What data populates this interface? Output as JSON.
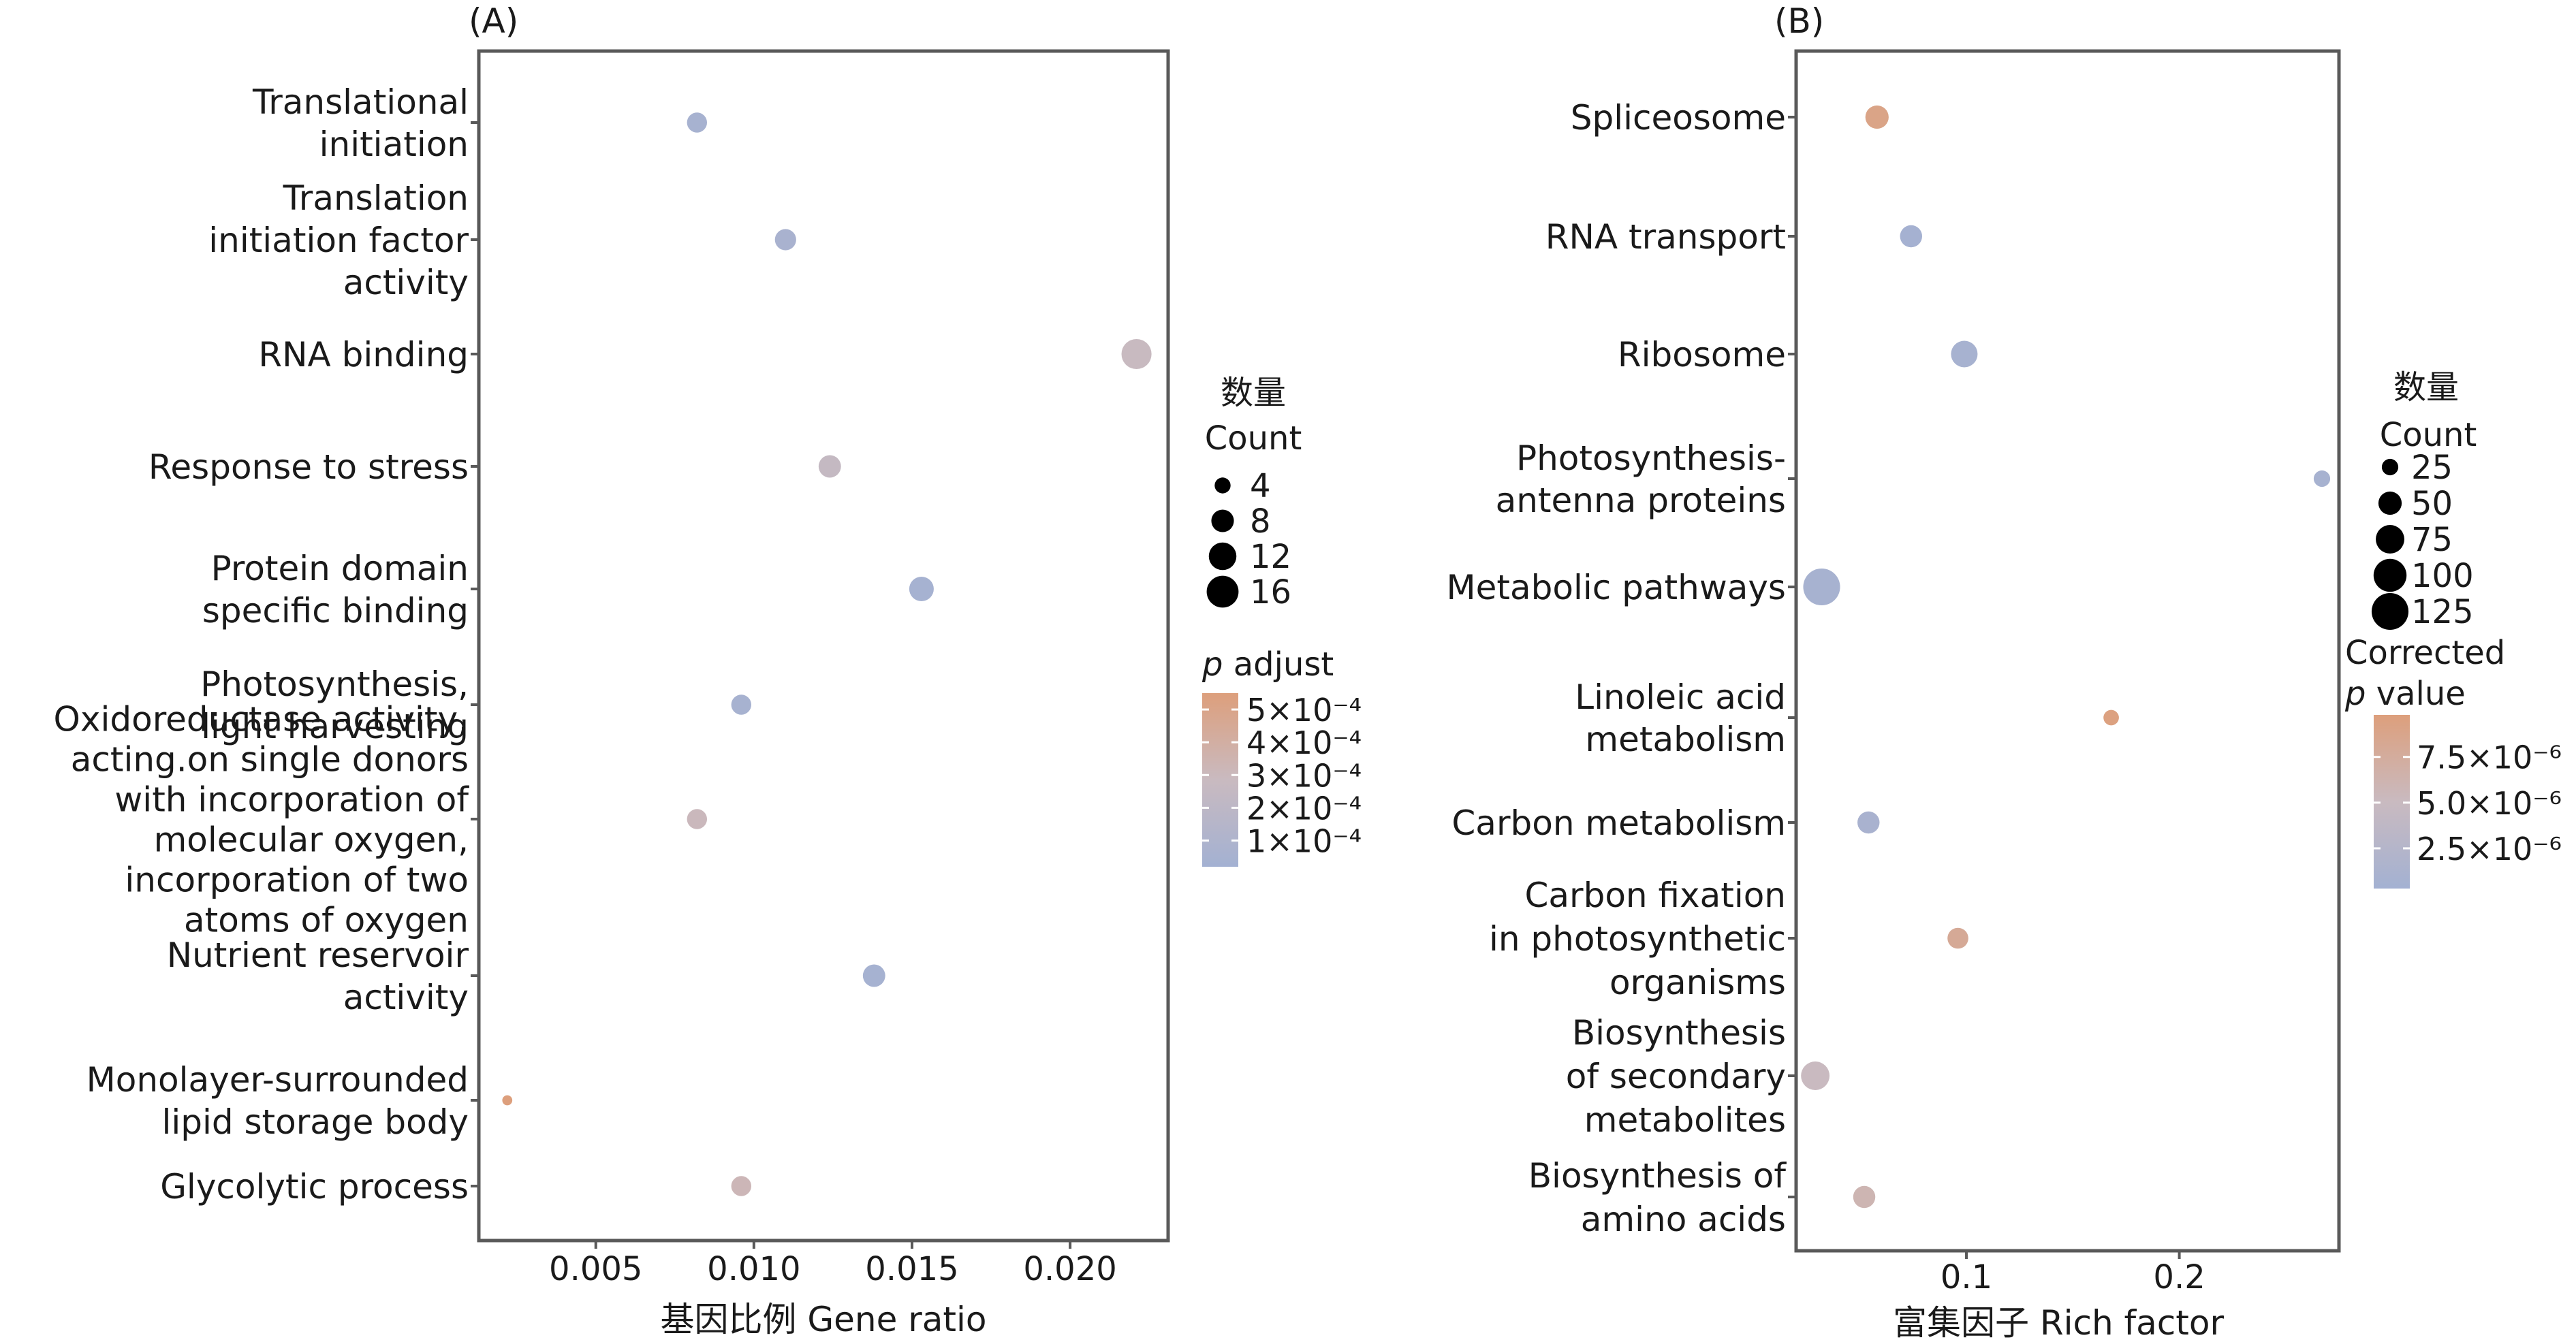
{
  "colors": {
    "low": "#a3b1d2",
    "mid": "#c9bac0",
    "high": "#dd9f7c",
    "axis": "#595959"
  },
  "chart_data": [
    {
      "id": "A",
      "type": "scatter",
      "panel_label": "(A)",
      "xlabel": "基因比例 Gene ratio",
      "xlim": [
        0.0013,
        0.0231
      ],
      "xticks": [
        0.005,
        0.01,
        0.015,
        0.02
      ],
      "xtick_labels": [
        "0.005",
        "0.010",
        "0.015",
        "0.020"
      ],
      "categories": [
        [
          "Translational",
          "initiation"
        ],
        [
          "Translation",
          "initiation factor",
          "activity"
        ],
        [
          "RNA binding"
        ],
        [
          "Response to stress"
        ],
        [
          "Protein domain",
          "specific binding"
        ],
        [
          "Photosynthesis,",
          "light harvesting"
        ],
        [
          "Oxidoreductase activity,",
          "acting.on single donors",
          "with incorporation of",
          "molecular oxygen,",
          "incorporation of two",
          "atoms of oxygen"
        ],
        [
          "Nutrient reservoir",
          "activity"
        ],
        [
          "Monolayer-surrounded",
          "lipid storage body"
        ],
        [
          "Glycolytic process"
        ]
      ],
      "points": [
        {
          "x": 0.0082,
          "count": 8,
          "p": 5e-05
        },
        {
          "x": 0.011,
          "count": 9,
          "p": 6e-05
        },
        {
          "x": 0.0221,
          "count": 18,
          "p": 0.00028
        },
        {
          "x": 0.0124,
          "count": 10,
          "p": 0.00025
        },
        {
          "x": 0.0153,
          "count": 12,
          "p": 4e-05
        },
        {
          "x": 0.0096,
          "count": 8,
          "p": 5e-05
        },
        {
          "x": 0.0082,
          "count": 8,
          "p": 0.0003
        },
        {
          "x": 0.0138,
          "count": 10,
          "p": 4e-05
        },
        {
          "x": 0.0022,
          "count": 2,
          "p": 0.00055
        },
        {
          "x": 0.0096,
          "count": 8,
          "p": 0.00032
        }
      ],
      "size_legend": {
        "title_cn": "数量",
        "title_en": "Count",
        "values": [
          4,
          8,
          12,
          16
        ],
        "labels": [
          "4",
          "8",
          "12",
          "16"
        ]
      },
      "color_legend": {
        "title_lines": [
          "p adjust"
        ],
        "title_italic_word": "p",
        "range": [
          2e-05,
          0.00055
        ],
        "ticks": [
          0.0005,
          0.0004,
          0.0003,
          0.0002,
          0.0001
        ],
        "labels": [
          "5×10⁻⁴",
          "4×10⁻⁴",
          "3×10⁻⁴",
          "2×10⁻⁴",
          "1×10⁻⁴"
        ]
      }
    },
    {
      "id": "B",
      "type": "scatter",
      "panel_label": "(B)",
      "xlabel": "富集因子 Rich factor",
      "xlim": [
        0.02,
        0.275
      ],
      "xticks": [
        0.1,
        0.2
      ],
      "xtick_labels": [
        "0.1",
        "0.2"
      ],
      "categories": [
        [
          "Spliceosome"
        ],
        [
          "RNA transport"
        ],
        [
          "Ribosome"
        ],
        [
          "Photosynthesis-",
          "antenna proteins"
        ],
        [
          "Metabolic pathways"
        ],
        [
          "Linoleic acid",
          "metabolism"
        ],
        [
          "Carbon metabolism"
        ],
        [
          "Carbon fixation",
          "in photosynthetic",
          "organisms"
        ],
        [
          "Biosynthesis",
          "of secondary",
          "metabolites"
        ],
        [
          "Biosynthesis of",
          "amino acids"
        ]
      ],
      "points": [
        {
          "x": 0.058,
          "count": 50,
          "p": 9e-06
        },
        {
          "x": 0.074,
          "count": 45,
          "p": 5e-07
        },
        {
          "x": 0.099,
          "count": 65,
          "p": 8e-07
        },
        {
          "x": 0.267,
          "count": 25,
          "p": 8e-07
        },
        {
          "x": 0.032,
          "count": 125,
          "p": 8e-07
        },
        {
          "x": 0.168,
          "count": 22,
          "p": 9.5e-06
        },
        {
          "x": 0.054,
          "count": 45,
          "p": 1e-06
        },
        {
          "x": 0.096,
          "count": 40,
          "p": 8e-06
        },
        {
          "x": 0.029,
          "count": 75,
          "p": 5e-06
        },
        {
          "x": 0.052,
          "count": 45,
          "p": 6e-06
        }
      ],
      "size_legend": {
        "title_cn": "数量",
        "title_en": "Count",
        "values": [
          25,
          50,
          75,
          100,
          125
        ],
        "labels": [
          "25",
          "50",
          "75",
          "100",
          "125"
        ]
      },
      "color_legend": {
        "title_lines": [
          "Corrected",
          "p value"
        ],
        "title_italic_word": "p",
        "range": [
          3e-07,
          9.8e-06
        ],
        "ticks": [
          7.5e-06,
          5e-06,
          2.5e-06
        ],
        "labels": [
          "7.5×10⁻⁶",
          "5.0×10⁻⁶",
          "2.5×10⁻⁶"
        ]
      }
    }
  ]
}
